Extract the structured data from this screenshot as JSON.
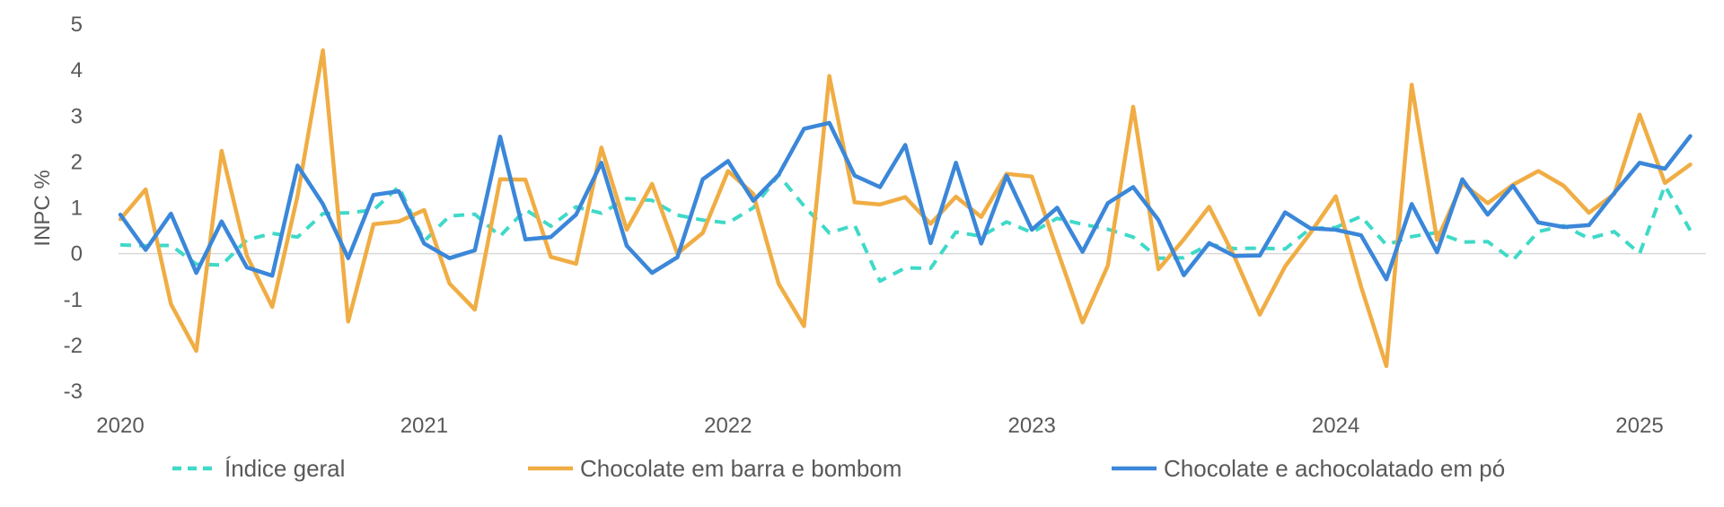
{
  "chart_data": {
    "type": "line",
    "ylabel": "INPC %",
    "xlabel": "",
    "ylim": [
      -3,
      5
    ],
    "yticks": [
      5,
      4,
      3,
      2,
      1,
      0,
      -1,
      -2,
      -3
    ],
    "ytick_labels": [
      "5",
      "4",
      "3",
      "2",
      "1",
      "0",
      "-1",
      "-2",
      "-3"
    ],
    "xtick_labels": [
      "2020",
      "2021",
      "2022",
      "2023",
      "2024",
      "2025"
    ],
    "x_start": "2020-01",
    "legend_placement": "bottom",
    "series": [
      {
        "name": "Índice geral",
        "color": "#3fd9c8",
        "dash": true,
        "values": [
          0.19,
          0.17,
          0.18,
          -0.23,
          -0.25,
          0.3,
          0.44,
          0.36,
          0.87,
          0.89,
          0.95,
          1.46,
          0.27,
          0.82,
          0.86,
          0.38,
          0.96,
          0.6,
          1.02,
          0.88,
          1.2,
          1.16,
          0.84,
          0.73,
          0.67,
          1.0,
          1.71,
          1.04,
          0.45,
          0.62,
          -0.6,
          -0.31,
          -0.32,
          0.47,
          0.38,
          0.69,
          0.46,
          0.77,
          0.64,
          0.53,
          0.36,
          -0.1,
          -0.09,
          0.2,
          0.11,
          0.12,
          0.1,
          0.55,
          0.57,
          0.81,
          0.19,
          0.37,
          0.46,
          0.25,
          0.26,
          -0.14,
          0.48,
          0.61,
          0.33,
          0.48,
          0.0,
          1.48,
          0.51
        ]
      },
      {
        "name": "Chocolate em barra e bombom",
        "color": "#f0ad44",
        "dash": false,
        "values": [
          0.75,
          1.4,
          -1.1,
          -2.12,
          2.24,
          -0.05,
          -1.16,
          1.26,
          4.43,
          -1.48,
          0.64,
          0.7,
          0.95,
          -0.65,
          -1.22,
          1.62,
          1.61,
          -0.07,
          -0.22,
          2.31,
          0.52,
          1.52,
          0.0,
          0.45,
          1.8,
          1.3,
          -0.66,
          -1.58,
          3.87,
          1.12,
          1.07,
          1.23,
          0.65,
          1.24,
          0.8,
          1.74,
          1.68,
          0.08,
          -1.5,
          -0.26,
          3.2,
          -0.34,
          0.31,
          1.02,
          -0.07,
          -1.33,
          -0.28,
          0.45,
          1.25,
          -0.72,
          -2.45,
          3.68,
          0.3,
          1.53,
          1.1,
          1.5,
          1.8,
          1.48,
          0.89,
          1.3,
          3.03,
          1.54,
          1.94
        ]
      },
      {
        "name": "Chocolate e achocolatado em pó",
        "color": "#3b87d9",
        "dash": false,
        "values": [
          0.85,
          0.08,
          0.87,
          -0.42,
          0.7,
          -0.3,
          -0.48,
          1.92,
          1.08,
          -0.1,
          1.28,
          1.36,
          0.22,
          -0.1,
          0.07,
          2.55,
          0.31,
          0.36,
          0.85,
          1.98,
          0.17,
          -0.42,
          -0.08,
          1.62,
          2.02,
          1.15,
          1.72,
          2.72,
          2.85,
          1.7,
          1.45,
          2.37,
          0.23,
          1.98,
          0.22,
          1.7,
          0.52,
          1.0,
          0.04,
          1.1,
          1.45,
          0.73,
          -0.47,
          0.23,
          -0.05,
          -0.04,
          0.9,
          0.55,
          0.52,
          0.4,
          -0.56,
          1.08,
          0.03,
          1.62,
          0.85,
          1.48,
          0.68,
          0.58,
          0.62,
          1.32,
          1.98,
          1.85,
          2.56
        ]
      }
    ]
  }
}
